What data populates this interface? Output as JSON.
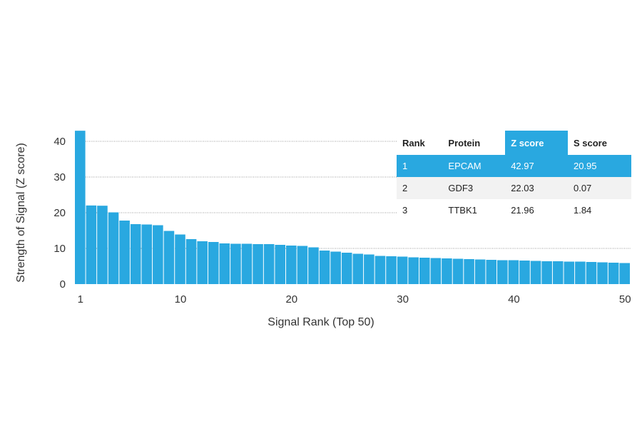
{
  "chart_data": {
    "type": "bar",
    "xlabel": "Signal Rank (Top 50)",
    "ylabel": "Strength of Signal (Z score)",
    "x_ticks": [
      "1",
      "10",
      "20",
      "30",
      "40",
      "50"
    ],
    "y_ticks": [
      "0",
      "10",
      "20",
      "30",
      "40"
    ],
    "ylim": [
      0,
      44
    ],
    "grid": "horizontal dotted at 10, 20, 30, 40",
    "bar_color": "#29a8e0",
    "categories": [
      1,
      2,
      3,
      4,
      5,
      6,
      7,
      8,
      9,
      10,
      11,
      12,
      13,
      14,
      15,
      16,
      17,
      18,
      19,
      20,
      21,
      22,
      23,
      24,
      25,
      26,
      27,
      28,
      29,
      30,
      31,
      32,
      33,
      34,
      35,
      36,
      37,
      38,
      39,
      40,
      41,
      42,
      43,
      44,
      45,
      46,
      47,
      48,
      49,
      50
    ],
    "values": [
      42.97,
      22.03,
      21.96,
      20.1,
      17.8,
      16.8,
      16.7,
      16.5,
      14.9,
      13.9,
      12.6,
      12.0,
      11.8,
      11.4,
      11.3,
      11.3,
      11.2,
      11.2,
      11.0,
      10.8,
      10.7,
      10.3,
      9.4,
      9.1,
      8.8,
      8.5,
      8.3,
      7.9,
      7.8,
      7.7,
      7.5,
      7.4,
      7.3,
      7.2,
      7.1,
      7.0,
      6.9,
      6.8,
      6.7,
      6.7,
      6.6,
      6.5,
      6.4,
      6.4,
      6.3,
      6.3,
      6.2,
      6.1,
      6.0,
      5.9
    ],
    "table": {
      "headers": [
        "Rank",
        "Protein",
        "Z score",
        "S score"
      ],
      "rows": [
        [
          "1",
          "EPCAM",
          "42.97",
          "20.95"
        ],
        [
          "2",
          "GDF3",
          "22.03",
          "0.07"
        ],
        [
          "3",
          "TTBK1",
          "21.96",
          "1.84"
        ]
      ]
    }
  }
}
